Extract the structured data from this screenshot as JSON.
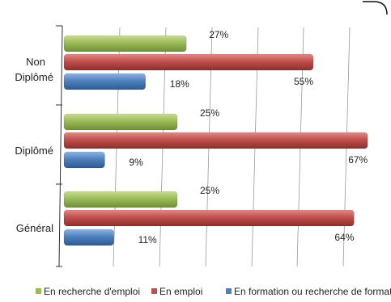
{
  "chart_data": {
    "type": "bar",
    "orientation": "horizontal",
    "categories": [
      [
        "Non",
        "Diplômé"
      ],
      [
        "Diplômé"
      ],
      [
        "Général"
      ]
    ],
    "xlim": [
      0,
      70
    ],
    "grid": true,
    "legend_position": "bottom",
    "series": [
      {
        "name": "En recherche d'emploi",
        "color": "#9BBB59",
        "values": [
          27,
          25,
          25
        ],
        "labels": [
          "27%",
          "25%",
          "25%"
        ]
      },
      {
        "name": "En emploi",
        "color": "#C0504D",
        "values": [
          55,
          67,
          64
        ],
        "labels": [
          "55%",
          "67%",
          "64%"
        ]
      },
      {
        "name": "En formation ou recherche de formation",
        "color": "#4F81BD",
        "values": [
          18,
          9,
          11
        ],
        "labels": [
          "18%",
          "9%",
          "11%"
        ]
      }
    ]
  }
}
